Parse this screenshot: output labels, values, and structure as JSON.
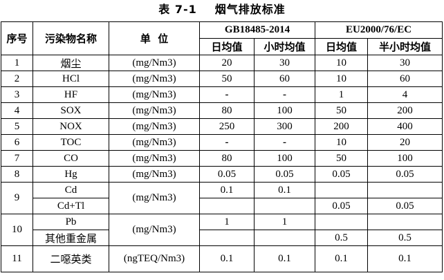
{
  "title": {
    "number": "表 7-1",
    "text": "烟气排放标准"
  },
  "header": {
    "seq": "序号",
    "name": "污染物名称",
    "unit": "单  位",
    "std1": "GB18485-2014",
    "std2": "EU2000/76/EC",
    "std1_cols": [
      "日均值",
      "小时均值"
    ],
    "std2_cols": [
      "日均值",
      "半小时均值"
    ]
  },
  "rows": [
    {
      "no": "1",
      "name": "烟尘",
      "unit": "(mg/Nm3)",
      "v": [
        "20",
        "30",
        "10",
        "30"
      ]
    },
    {
      "no": "2",
      "name": "HCl",
      "unit": "(mg/Nm3)",
      "v": [
        "50",
        "60",
        "10",
        "60"
      ]
    },
    {
      "no": "3",
      "name": "HF",
      "unit": "(mg/Nm3)",
      "v": [
        "-",
        "-",
        "1",
        "4"
      ]
    },
    {
      "no": "4",
      "name": "SOX",
      "unit": "(mg/Nm3)",
      "v": [
        "80",
        "100",
        "50",
        "200"
      ]
    },
    {
      "no": "5",
      "name": "NOX",
      "unit": "(mg/Nm3)",
      "v": [
        "250",
        "300",
        "200",
        "400"
      ]
    },
    {
      "no": "6",
      "name": "TOC",
      "unit": "(mg/Nm3)",
      "v": [
        "-",
        "-",
        "10",
        "20"
      ]
    },
    {
      "no": "7",
      "name": "CO",
      "unit": "(mg/Nm3)",
      "v": [
        "80",
        "100",
        "50",
        "100"
      ]
    },
    {
      "no": "8",
      "name": "Hg",
      "unit": "(mg/Nm3)",
      "v": [
        "0.05",
        "0.05",
        "0.05",
        "0.05"
      ]
    }
  ],
  "row9": {
    "no": "9",
    "unit": "(mg/Nm3)",
    "a": {
      "name": "Cd",
      "v": [
        "0.1",
        "0.1",
        "",
        ""
      ]
    },
    "b": {
      "name": "Cd+Tl",
      "v": [
        "",
        "",
        "0.05",
        "0.05"
      ]
    }
  },
  "row10": {
    "no": "10",
    "unit": "(mg/Nm3)",
    "a": {
      "name": "Pb",
      "v": [
        "1",
        "1",
        "",
        ""
      ]
    },
    "b": {
      "name": "其他重金属",
      "v": [
        "",
        "",
        "0.5",
        "0.5"
      ]
    }
  },
  "row11": {
    "no": "11",
    "name": "二噁英类",
    "unit": "(ngTEQ/Nm3)",
    "v": [
      "0.1",
      "0.1",
      "0.1",
      "0.1"
    ]
  }
}
